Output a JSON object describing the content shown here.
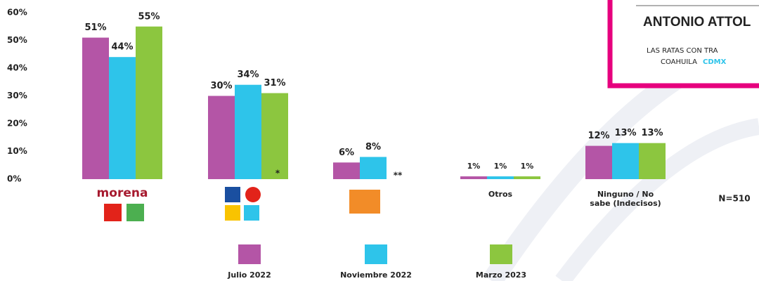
{
  "chart_data": {
    "type": "bar",
    "categories": [
      "morena",
      null,
      null,
      "Otros",
      "Ninguno / No sabe (Indecisos)"
    ],
    "series": [
      {
        "name": "Julio 2022",
        "color": "#b455a6",
        "values": [
          51,
          30,
          6,
          1,
          12
        ],
        "value_labels": [
          "51%",
          "30%",
          "6%",
          "1%",
          "12%"
        ]
      },
      {
        "name": "Noviembre 2022",
        "color": "#2ec4ea",
        "values": [
          44,
          34,
          8,
          1,
          13
        ],
        "value_labels": [
          "44%",
          "34%",
          "8%",
          "1%",
          "13%"
        ]
      },
      {
        "name": "Marzo 2023",
        "color": "#8cc63f",
        "values": [
          55,
          31,
          null,
          1,
          13
        ],
        "value_labels": [
          "55%",
          "31%",
          null,
          "1%",
          "13%"
        ]
      }
    ],
    "ylim": [
      0,
      60
    ],
    "yticks": [
      {
        "value": 0,
        "label": "0%"
      },
      {
        "value": 10,
        "label": "10%"
      },
      {
        "value": 20,
        "label": "20%"
      },
      {
        "value": 30,
        "label": "30%"
      },
      {
        "value": 40,
        "label": "40%"
      },
      {
        "value": 50,
        "label": "50%"
      },
      {
        "value": 60,
        "label": "60%"
      }
    ],
    "grid": false,
    "annotations": [
      "*",
      "**",
      "N=510"
    ]
  },
  "ad": {
    "name": "ANTONIO ATTOL",
    "line1": "LAS RATAS CON TRA",
    "line2a": "COAHUILA",
    "line2b": "CDMX"
  }
}
